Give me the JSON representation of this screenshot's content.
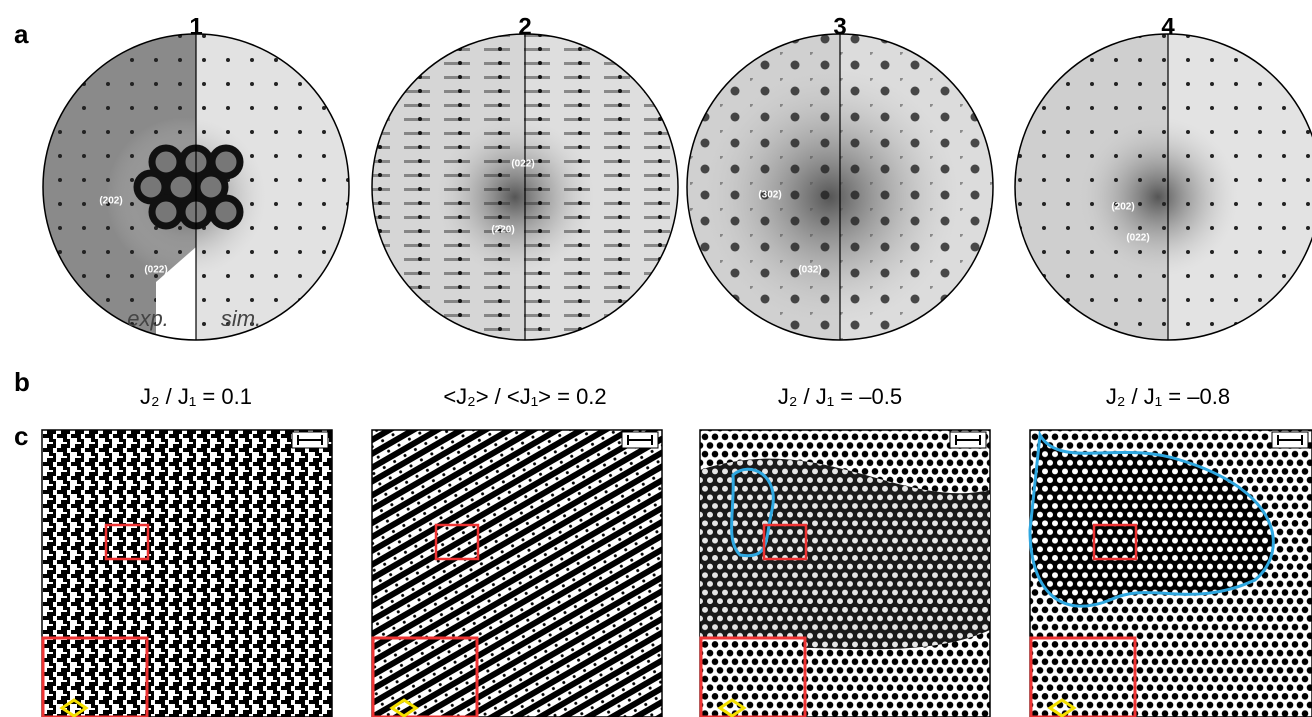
{
  "panel_labels": [
    "a",
    "b",
    "c"
  ],
  "columns": [
    {
      "number": "1",
      "spot_labels": [
        "(202)",
        "(022)"
      ],
      "side_labels": [
        "exp.",
        "sim."
      ],
      "ratio": "J₂ / J₁ = 0.1"
    },
    {
      "number": "2",
      "spot_labels": [
        "(022)",
        "(2̄20)"
      ],
      "ratio": "<J₂>  / <J₁> = 0.2"
    },
    {
      "number": "3",
      "spot_labels": [
        "(302)",
        "(032)"
      ],
      "ratio": "J₂ / J₁ = –0.5"
    },
    {
      "number": "4",
      "spot_labels": [
        "(202)",
        "(022)"
      ],
      "ratio": "J₂ / J₁ = –0.8"
    }
  ]
}
